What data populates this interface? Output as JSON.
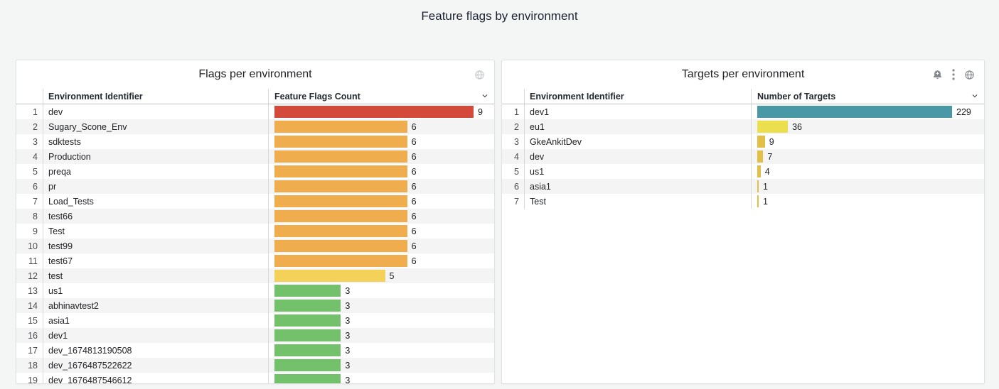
{
  "page": {
    "title": "Feature flags by environment",
    "background_color": "#f4f5f5"
  },
  "colors": {
    "red": "#d44a3a",
    "orange": "#efad4d",
    "yellow": "#f4d25a",
    "green": "#73c16a",
    "teal": "#4899a5",
    "bright_yellow": "#ebdf4e",
    "gold": "#e3bf47"
  },
  "panels": [
    {
      "title": "Flags per environment",
      "header_icons": [
        "globe-icon"
      ],
      "columns": {
        "name": "Environment Identifier",
        "value": "Feature Flags Count"
      },
      "max_value": 9,
      "rows": [
        {
          "index": 1,
          "name": "dev",
          "value": 9,
          "color": "#d44a3a"
        },
        {
          "index": 2,
          "name": "Sugary_Scone_Env",
          "value": 6,
          "color": "#efad4d"
        },
        {
          "index": 3,
          "name": "sdktests",
          "value": 6,
          "color": "#efad4d"
        },
        {
          "index": 4,
          "name": "Production",
          "value": 6,
          "color": "#efad4d"
        },
        {
          "index": 5,
          "name": "preqa",
          "value": 6,
          "color": "#efad4d"
        },
        {
          "index": 6,
          "name": "pr",
          "value": 6,
          "color": "#efad4d"
        },
        {
          "index": 7,
          "name": "Load_Tests",
          "value": 6,
          "color": "#efad4d"
        },
        {
          "index": 8,
          "name": "test66",
          "value": 6,
          "color": "#efad4d"
        },
        {
          "index": 9,
          "name": "Test",
          "value": 6,
          "color": "#efad4d"
        },
        {
          "index": 10,
          "name": "test99",
          "value": 6,
          "color": "#efad4d"
        },
        {
          "index": 11,
          "name": "test67",
          "value": 6,
          "color": "#efad4d"
        },
        {
          "index": 12,
          "name": "test",
          "value": 5,
          "color": "#f4d25a"
        },
        {
          "index": 13,
          "name": "us1",
          "value": 3,
          "color": "#73c16a"
        },
        {
          "index": 14,
          "name": "abhinavtest2",
          "value": 3,
          "color": "#73c16a"
        },
        {
          "index": 15,
          "name": "asia1",
          "value": 3,
          "color": "#73c16a"
        },
        {
          "index": 16,
          "name": "dev1",
          "value": 3,
          "color": "#73c16a"
        },
        {
          "index": 17,
          "name": "dev_1674813190508",
          "value": 3,
          "color": "#73c16a"
        },
        {
          "index": 18,
          "name": "dev_1676487522622",
          "value": 3,
          "color": "#73c16a"
        },
        {
          "index": 19,
          "name": "dev_1676487546612",
          "value": 3,
          "color": "#73c16a"
        }
      ]
    },
    {
      "title": "Targets per environment",
      "header_icons": [
        "bell-plus-icon",
        "kebab-menu-icon",
        "globe-icon"
      ],
      "columns": {
        "name": "Environment Identifier",
        "value": "Number of Targets"
      },
      "max_value": 229,
      "rows": [
        {
          "index": 1,
          "name": "dev1",
          "value": 229,
          "color": "#4899a5"
        },
        {
          "index": 2,
          "name": "eu1",
          "value": 36,
          "color": "#ebdf4e"
        },
        {
          "index": 3,
          "name": "GkeAnkitDev",
          "value": 9,
          "color": "#e3bf47"
        },
        {
          "index": 4,
          "name": "dev",
          "value": 7,
          "color": "#e3bf47"
        },
        {
          "index": 5,
          "name": "us1",
          "value": 4,
          "color": "#e3bf47"
        },
        {
          "index": 6,
          "name": "asia1",
          "value": 1,
          "color": "#e3bf47"
        },
        {
          "index": 7,
          "name": "Test",
          "value": 1,
          "color": "#e3bf47"
        }
      ]
    }
  ],
  "chart_data": [
    {
      "type": "bar",
      "title": "Flags per environment",
      "orientation": "horizontal",
      "categories": [
        "dev",
        "Sugary_Scone_Env",
        "sdktests",
        "Production",
        "preqa",
        "pr",
        "Load_Tests",
        "test66",
        "Test",
        "test99",
        "test67",
        "test",
        "us1",
        "abhinavtest2",
        "asia1",
        "dev1",
        "dev_1674813190508",
        "dev_1676487522622",
        "dev_1676487546612"
      ],
      "values": [
        9,
        6,
        6,
        6,
        6,
        6,
        6,
        6,
        6,
        6,
        6,
        5,
        3,
        3,
        3,
        3,
        3,
        3,
        3
      ],
      "xlabel": "Feature Flags Count",
      "ylabel": "Environment Identifier"
    },
    {
      "type": "bar",
      "title": "Targets per environment",
      "orientation": "horizontal",
      "categories": [
        "dev1",
        "eu1",
        "GkeAnkitDev",
        "dev",
        "us1",
        "asia1",
        "Test"
      ],
      "values": [
        229,
        36,
        9,
        7,
        4,
        1,
        1
      ],
      "xlabel": "Number of Targets",
      "ylabel": "Environment Identifier"
    }
  ]
}
